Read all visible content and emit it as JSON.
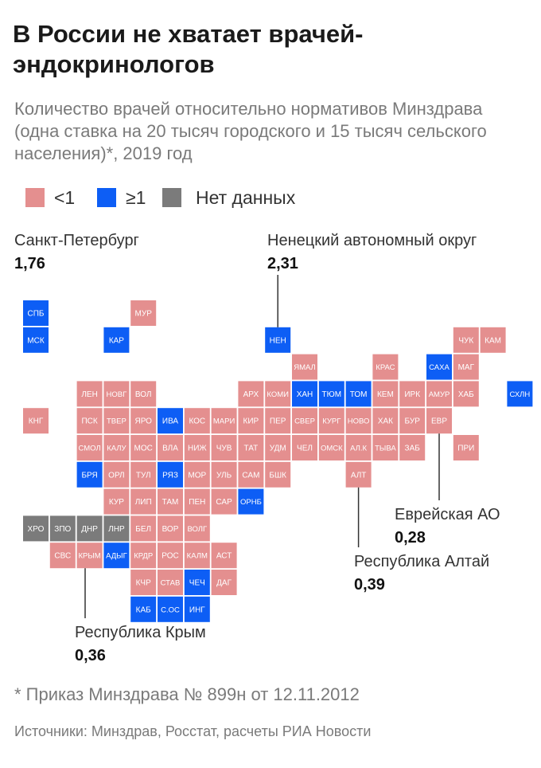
{
  "header": {
    "title": "В России не хватает врачей-эндокринологов",
    "subtitle": "Количество врачей относительно нормативов Минздрава (одна ставка на 20 тысяч городского и 15 тысяч сельского населения)*, 2019 год"
  },
  "legend": {
    "items": [
      {
        "label": "<1",
        "color": "#e48f8f"
      },
      {
        "label": "≥1",
        "color": "#0d5ef5"
      },
      {
        "label": "Нет данных",
        "color": "#7b7b7b"
      }
    ]
  },
  "colors": {
    "low": "#e48f8f",
    "high": "#0d5ef5",
    "nodata": "#7b7b7b",
    "leader": "#333333"
  },
  "callouts": {
    "spb": {
      "name": "Санкт-Петербург",
      "value": "1,76"
    },
    "nao": {
      "name": "Ненецкий автономный округ",
      "value": "2,31"
    },
    "eao": {
      "name": "Еврейская АО",
      "value": "0,28"
    },
    "altai": {
      "name": "Республика Алтай",
      "value": "0,39"
    },
    "crimea": {
      "name": "Республика Крым",
      "value": "0,36"
    }
  },
  "footnote": "* Приказ Минздрава № 899н от 12.11.2012",
  "source": "Источники: Минздрав, Росстат, расчеты РИА Новости",
  "chart_data": {
    "type": "heatmap",
    "layout": "tile-grid map",
    "categories": [
      "<1",
      "≥1",
      "Нет данных"
    ],
    "tiles": [
      {
        "label": "СПБ",
        "col": 0,
        "row": 0,
        "category": "≥1"
      },
      {
        "label": "МУР",
        "col": 4,
        "row": 0,
        "category": "<1"
      },
      {
        "label": "ЧУК",
        "col": 16,
        "row": 1,
        "category": "<1"
      },
      {
        "label": "КАМ",
        "col": 17,
        "row": 1,
        "category": "<1"
      },
      {
        "label": "МСК",
        "col": 0,
        "row": 1,
        "category": "≥1"
      },
      {
        "label": "КАР",
        "col": 3,
        "row": 1,
        "category": "≥1"
      },
      {
        "label": "НЕН",
        "col": 9,
        "row": 1,
        "category": "≥1"
      },
      {
        "label": "ЯМАЛ",
        "col": 10,
        "row": 2,
        "category": "<1"
      },
      {
        "label": "КРАС",
        "col": 13,
        "row": 2,
        "category": "<1"
      },
      {
        "label": "САХА",
        "col": 15,
        "row": 2,
        "category": "≥1"
      },
      {
        "label": "МАГ",
        "col": 16,
        "row": 2,
        "category": "<1"
      },
      {
        "label": "ЛЕН",
        "col": 2,
        "row": 3,
        "category": "<1"
      },
      {
        "label": "НОВГ",
        "col": 3,
        "row": 3,
        "category": "<1"
      },
      {
        "label": "ВОЛ",
        "col": 4,
        "row": 3,
        "category": "<1"
      },
      {
        "label": "АРХ",
        "col": 8,
        "row": 3,
        "category": "<1"
      },
      {
        "label": "КОМИ",
        "col": 9,
        "row": 3,
        "category": "<1"
      },
      {
        "label": "ХАН",
        "col": 10,
        "row": 3,
        "category": "≥1"
      },
      {
        "label": "ТЮМ",
        "col": 11,
        "row": 3,
        "category": "≥1"
      },
      {
        "label": "ТОМ",
        "col": 12,
        "row": 3,
        "category": "≥1"
      },
      {
        "label": "КЕМ",
        "col": 13,
        "row": 3,
        "category": "<1"
      },
      {
        "label": "ИРК",
        "col": 14,
        "row": 3,
        "category": "<1"
      },
      {
        "label": "АМУР",
        "col": 15,
        "row": 3,
        "category": "<1"
      },
      {
        "label": "ХАБ",
        "col": 16,
        "row": 3,
        "category": "<1"
      },
      {
        "label": "СХЛН",
        "col": 18,
        "row": 3,
        "category": "≥1"
      },
      {
        "label": "КНГ",
        "col": 0,
        "row": 4,
        "category": "<1"
      },
      {
        "label": "ПСК",
        "col": 2,
        "row": 4,
        "category": "<1"
      },
      {
        "label": "ТВЕР",
        "col": 3,
        "row": 4,
        "category": "<1"
      },
      {
        "label": "ЯРО",
        "col": 4,
        "row": 4,
        "category": "<1"
      },
      {
        "label": "ИВА",
        "col": 5,
        "row": 4,
        "category": "≥1"
      },
      {
        "label": "КОС",
        "col": 6,
        "row": 4,
        "category": "<1"
      },
      {
        "label": "МАРИ",
        "col": 7,
        "row": 4,
        "category": "<1"
      },
      {
        "label": "КИР",
        "col": 8,
        "row": 4,
        "category": "<1"
      },
      {
        "label": "ПЕР",
        "col": 9,
        "row": 4,
        "category": "<1"
      },
      {
        "label": "СВЕР",
        "col": 10,
        "row": 4,
        "category": "<1"
      },
      {
        "label": "КУРГ",
        "col": 11,
        "row": 4,
        "category": "<1"
      },
      {
        "label": "НОВО",
        "col": 12,
        "row": 4,
        "category": "<1"
      },
      {
        "label": "ХАК",
        "col": 13,
        "row": 4,
        "category": "<1"
      },
      {
        "label": "БУР",
        "col": 14,
        "row": 4,
        "category": "<1"
      },
      {
        "label": "ЕВР",
        "col": 15,
        "row": 4,
        "category": "<1"
      },
      {
        "label": "СМОЛ",
        "col": 2,
        "row": 5,
        "category": "<1"
      },
      {
        "label": "КАЛУ",
        "col": 3,
        "row": 5,
        "category": "<1"
      },
      {
        "label": "МОС",
        "col": 4,
        "row": 5,
        "category": "<1"
      },
      {
        "label": "ВЛА",
        "col": 5,
        "row": 5,
        "category": "<1"
      },
      {
        "label": "НИЖ",
        "col": 6,
        "row": 5,
        "category": "<1"
      },
      {
        "label": "ЧУВ",
        "col": 7,
        "row": 5,
        "category": "<1"
      },
      {
        "label": "ТАТ",
        "col": 8,
        "row": 5,
        "category": "<1"
      },
      {
        "label": "УДМ",
        "col": 9,
        "row": 5,
        "category": "<1"
      },
      {
        "label": "ЧЕЛ",
        "col": 10,
        "row": 5,
        "category": "<1"
      },
      {
        "label": "ОМСК",
        "col": 11,
        "row": 5,
        "category": "<1"
      },
      {
        "label": "АЛ.К",
        "col": 12,
        "row": 5,
        "category": "<1"
      },
      {
        "label": "ТЫВА",
        "col": 13,
        "row": 5,
        "category": "<1"
      },
      {
        "label": "ЗАБ",
        "col": 14,
        "row": 5,
        "category": "<1"
      },
      {
        "label": "ПРИ",
        "col": 16,
        "row": 5,
        "category": "<1"
      },
      {
        "label": "БРЯ",
        "col": 2,
        "row": 6,
        "category": "≥1"
      },
      {
        "label": "ОРЛ",
        "col": 3,
        "row": 6,
        "category": "<1"
      },
      {
        "label": "ТУЛ",
        "col": 4,
        "row": 6,
        "category": "<1"
      },
      {
        "label": "РЯЗ",
        "col": 5,
        "row": 6,
        "category": "≥1"
      },
      {
        "label": "МОР",
        "col": 6,
        "row": 6,
        "category": "<1"
      },
      {
        "label": "УЛЬ",
        "col": 7,
        "row": 6,
        "category": "<1"
      },
      {
        "label": "САМ",
        "col": 8,
        "row": 6,
        "category": "<1"
      },
      {
        "label": "БШК",
        "col": 9,
        "row": 6,
        "category": "<1"
      },
      {
        "label": "АЛТ",
        "col": 12,
        "row": 6,
        "category": "<1"
      },
      {
        "label": "КУР",
        "col": 3,
        "row": 7,
        "category": "<1"
      },
      {
        "label": "ЛИП",
        "col": 4,
        "row": 7,
        "category": "<1"
      },
      {
        "label": "ТАМ",
        "col": 5,
        "row": 7,
        "category": "<1"
      },
      {
        "label": "ПЕН",
        "col": 6,
        "row": 7,
        "category": "<1"
      },
      {
        "label": "САР",
        "col": 7,
        "row": 7,
        "category": "<1"
      },
      {
        "label": "ОРНБ",
        "col": 8,
        "row": 7,
        "category": "≥1"
      },
      {
        "label": "ХРО",
        "col": 0,
        "row": 8,
        "category": "Нет данных"
      },
      {
        "label": "ЗПО",
        "col": 1,
        "row": 8,
        "category": "Нет данных"
      },
      {
        "label": "ДНР",
        "col": 2,
        "row": 8,
        "category": "Нет данных"
      },
      {
        "label": "ЛНР",
        "col": 3,
        "row": 8,
        "category": "Нет данных"
      },
      {
        "label": "БЕЛ",
        "col": 4,
        "row": 8,
        "category": "<1"
      },
      {
        "label": "ВОР",
        "col": 5,
        "row": 8,
        "category": "<1"
      },
      {
        "label": "ВОЛГ",
        "col": 6,
        "row": 8,
        "category": "<1"
      },
      {
        "label": "СВС",
        "col": 1,
        "row": 9,
        "category": "<1"
      },
      {
        "label": "КРЫМ",
        "col": 2,
        "row": 9,
        "category": "<1"
      },
      {
        "label": "АДЫГ",
        "col": 3,
        "row": 9,
        "category": "≥1"
      },
      {
        "label": "КРДР",
        "col": 4,
        "row": 9,
        "category": "<1"
      },
      {
        "label": "РОС",
        "col": 5,
        "row": 9,
        "category": "<1"
      },
      {
        "label": "КАЛМ",
        "col": 6,
        "row": 9,
        "category": "<1"
      },
      {
        "label": "АСТ",
        "col": 7,
        "row": 9,
        "category": "<1"
      },
      {
        "label": "КЧР",
        "col": 4,
        "row": 10,
        "category": "<1"
      },
      {
        "label": "СТАВ",
        "col": 5,
        "row": 10,
        "category": "<1"
      },
      {
        "label": "ЧЕЧ",
        "col": 6,
        "row": 10,
        "category": "≥1"
      },
      {
        "label": "ДАГ",
        "col": 7,
        "row": 10,
        "category": "<1"
      },
      {
        "label": "КАБ",
        "col": 4,
        "row": 11,
        "category": "≥1"
      },
      {
        "label": "С.ОС",
        "col": 5,
        "row": 11,
        "category": "≥1"
      },
      {
        "label": "ИНГ",
        "col": 6,
        "row": 11,
        "category": "≥1"
      }
    ],
    "highlighted": [
      {
        "label": "СПБ",
        "name": "Санкт-Петербург",
        "value": 1.76
      },
      {
        "label": "НЕН",
        "name": "Ненецкий автономный округ",
        "value": 2.31
      },
      {
        "label": "ЕВР",
        "name": "Еврейская АО",
        "value": 0.28
      },
      {
        "label": "АЛТ",
        "name": "Республика Алтай",
        "value": 0.39
      },
      {
        "label": "КРЫМ",
        "name": "Республика Крым",
        "value": 0.36
      }
    ]
  }
}
